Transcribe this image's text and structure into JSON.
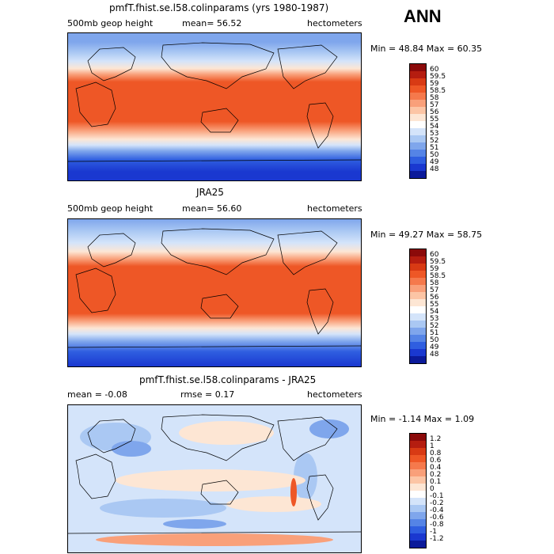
{
  "season": "ANN",
  "units": "hectometers",
  "variable": "500mb geop height",
  "panels": [
    {
      "title": "pmfT.fhist.se.l58.colinparams (yrs 1980-1987)",
      "left_text": "500mb geop height",
      "mean_text": "mean=   56.52",
      "units_text": "hectometers",
      "minmax_text": "Min =   48.84  Max =   60.35"
    },
    {
      "title": "JRA25",
      "left_text": "500mb geop height",
      "mean_text": "mean=   56.60",
      "units_text": "hectometers",
      "minmax_text": "Min =   49.27  Max =   58.75"
    },
    {
      "title": "pmfT.fhist.se.l58.colinparams - JRA25",
      "left_text": "mean =   -0.08",
      "mean_text": "rmse =    0.17",
      "units_text": "hectometers",
      "minmax_text": "Min =   -1.14  Max =    1.09"
    }
  ],
  "chart_data": [
    {
      "type": "heatmap",
      "title": "pmfT.fhist.se.l58.colinparams (yrs 1980-1987)",
      "quantity": "500mb geop height",
      "units": "hectometers",
      "mean": 56.52,
      "min": 48.84,
      "max": 60.35,
      "colorbar_levels": [
        "60",
        "59.5",
        "59",
        "58.5",
        "58",
        "57",
        "56",
        "55",
        "54",
        "53",
        "52",
        "51",
        "50",
        "49",
        "48"
      ],
      "colorbar_colors": [
        "#8b0a0a",
        "#b51d10",
        "#d83a14",
        "#ee5726",
        "#f5794c",
        "#f9a07a",
        "#fcc5a5",
        "#fde6d4",
        "#ffffff",
        "#d4e4fa",
        "#aac8f3",
        "#7fa6ec",
        "#5584e6",
        "#2f5ee0",
        "#1a38d0",
        "#0b1a9a"
      ]
    },
    {
      "type": "heatmap",
      "title": "JRA25",
      "quantity": "500mb geop height",
      "units": "hectometers",
      "mean": 56.6,
      "min": 49.27,
      "max": 58.75,
      "colorbar_levels": [
        "60",
        "59.5",
        "59",
        "58.5",
        "58",
        "57",
        "56",
        "55",
        "54",
        "53",
        "52",
        "51",
        "50",
        "49",
        "48"
      ],
      "colorbar_colors": [
        "#8b0a0a",
        "#b51d10",
        "#d83a14",
        "#ee5726",
        "#f5794c",
        "#f9a07a",
        "#fcc5a5",
        "#fde6d4",
        "#ffffff",
        "#d4e4fa",
        "#aac8f3",
        "#7fa6ec",
        "#5584e6",
        "#2f5ee0",
        "#1a38d0",
        "#0b1a9a"
      ]
    },
    {
      "type": "heatmap",
      "title": "pmfT.fhist.se.l58.colinparams - JRA25",
      "quantity": "difference",
      "units": "hectometers",
      "mean": -0.08,
      "rmse": 0.17,
      "min": -1.14,
      "max": 1.09,
      "colorbar_levels": [
        "1.2",
        "1",
        "0.8",
        "0.6",
        "0.4",
        "0.2",
        "0.1",
        "0",
        "-0.1",
        "-0.2",
        "-0.4",
        "-0.6",
        "-0.8",
        "-1",
        "-1.2"
      ],
      "colorbar_colors": [
        "#8b0a0a",
        "#b51d10",
        "#d83a14",
        "#ee5726",
        "#f5794c",
        "#f9a07a",
        "#fcc5a5",
        "#fde6d4",
        "#ffffff",
        "#d4e4fa",
        "#aac8f3",
        "#7fa6ec",
        "#5584e6",
        "#2f5ee0",
        "#1a38d0",
        "#0b1a9a"
      ]
    }
  ]
}
